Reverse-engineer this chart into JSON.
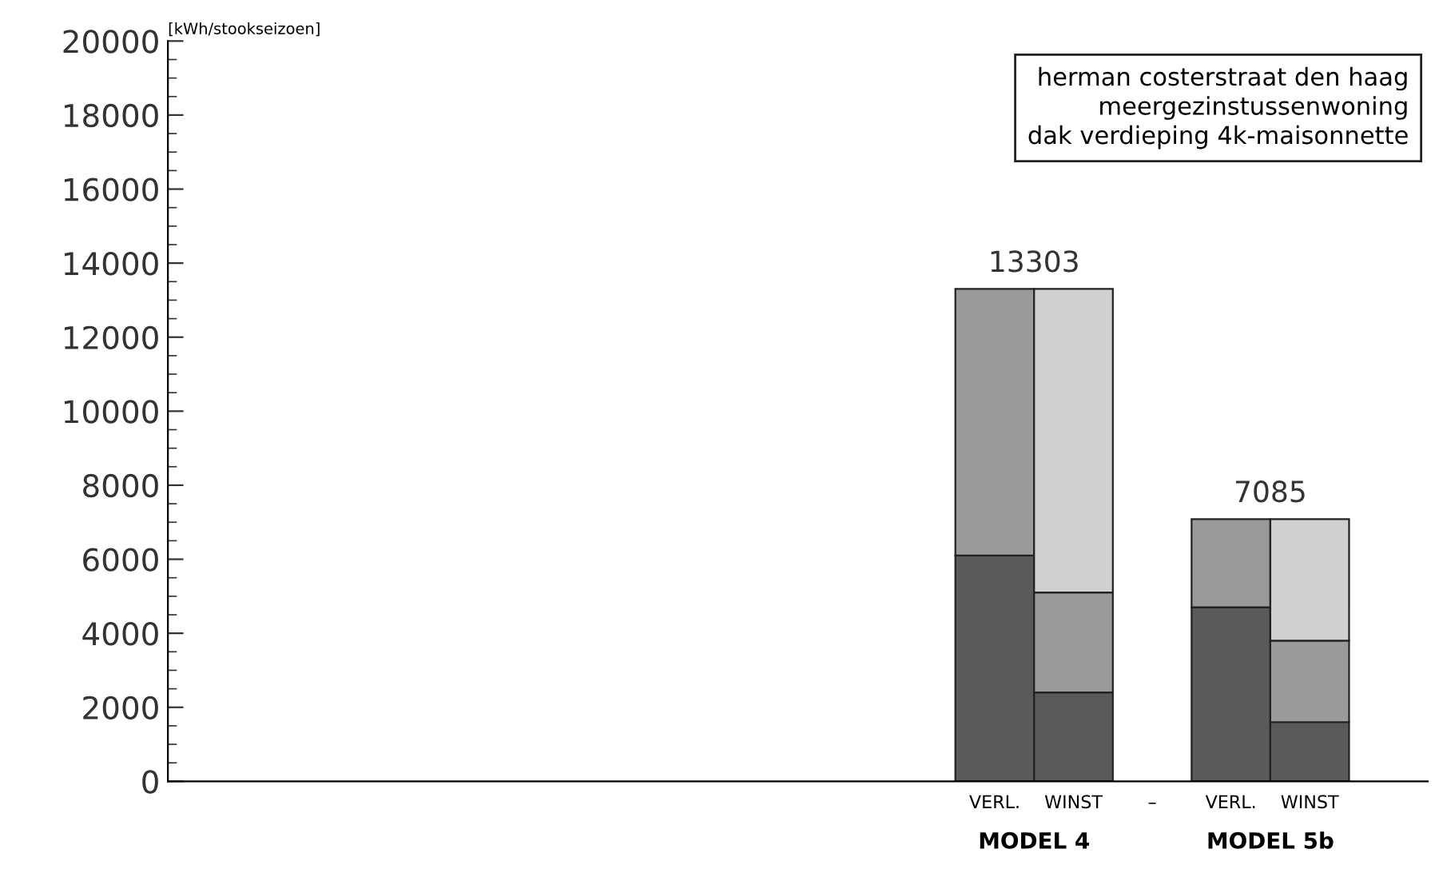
{
  "chart_data": {
    "type": "bar",
    "stacked": true,
    "title": "herman costerstraat den haag\nmeergezinstussenwoning\ndak verdieping 4k-maisonnette",
    "ylabel": "[kWh/stookseizoen]",
    "categories": [
      null,
      null,
      null,
      null,
      null,
      null,
      null,
      null,
      null,
      null,
      "VERL.",
      "WINST",
      "–",
      "VERL.",
      "WINST",
      null
    ],
    "series": [
      {
        "color": "#5a5a5a",
        "values": [
          null,
          null,
          null,
          null,
          null,
          null,
          null,
          null,
          null,
          null,
          6100,
          2400,
          null,
          4700,
          1600,
          null
        ]
      },
      {
        "color": "#9a9a9a",
        "values": [
          null,
          null,
          null,
          null,
          null,
          null,
          null,
          null,
          null,
          null,
          7203,
          2700,
          null,
          2385,
          2200,
          null
        ]
      },
      {
        "color": "#d0d0d0",
        "values": [
          null,
          null,
          null,
          null,
          null,
          null,
          null,
          null,
          null,
          null,
          null,
          8203,
          null,
          null,
          3285,
          null
        ]
      }
    ],
    "totals": [
      null,
      null,
      null,
      null,
      null,
      null,
      null,
      null,
      null,
      null,
      "13303",
      null,
      null,
      "7085",
      null,
      null
    ],
    "annotations": [
      "MODEL 4",
      "MODEL 5b"
    ],
    "ylim": [
      0,
      20000
    ],
    "yticks": [
      0,
      2000,
      4000,
      6000,
      8000,
      10000,
      12000,
      14000,
      16000,
      18000,
      20000
    ],
    "grid": false
  }
}
